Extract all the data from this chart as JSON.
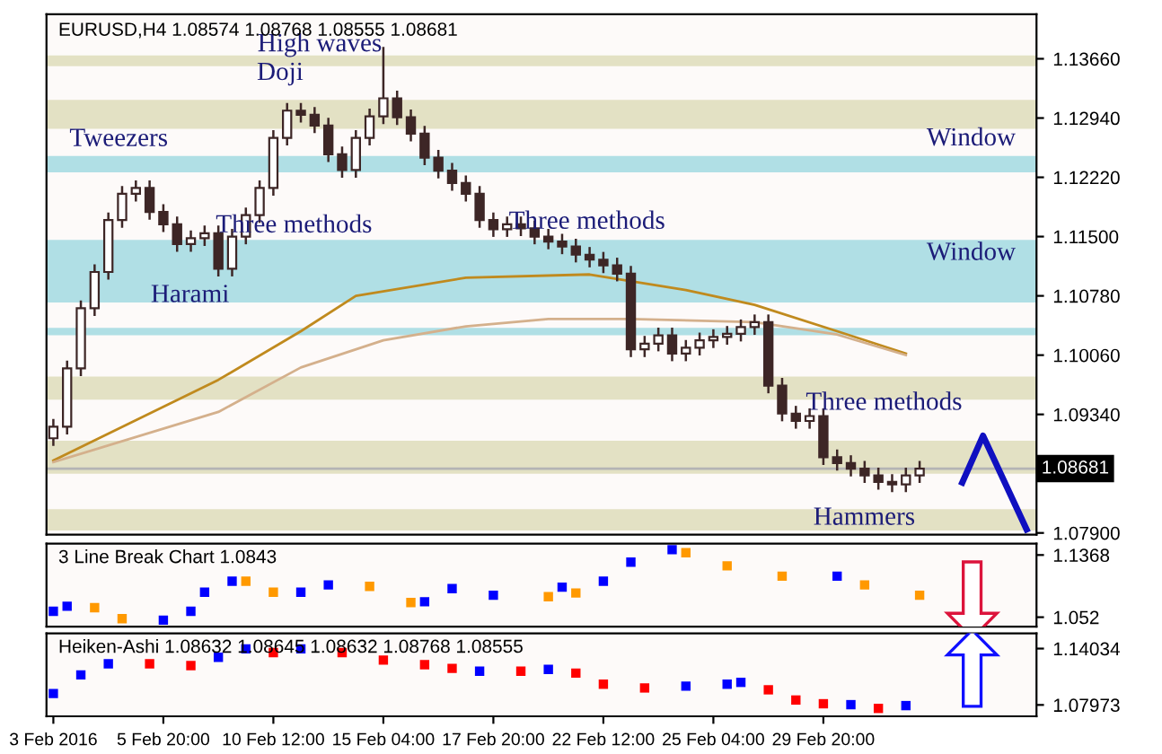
{
  "chart_data": [
    {
      "type": "candlestick",
      "title": "EURUSD,H4 1.08574 1.08768 1.08555 1.08681",
      "color": "#3d2626",
      "categories": [
        null,
        null,
        null,
        null,
        null,
        null,
        null,
        null,
        null,
        null,
        null,
        null,
        null,
        null,
        null,
        null,
        null,
        null,
        null,
        null,
        null,
        null,
        null,
        null,
        null,
        null,
        null,
        null,
        null,
        null,
        null,
        null,
        null,
        null,
        null,
        null,
        null,
        null,
        null,
        null,
        null,
        null,
        null,
        null,
        null,
        null,
        null,
        null,
        null,
        null,
        null,
        null,
        null,
        null,
        null,
        null,
        null,
        null,
        null,
        null,
        null,
        null,
        null,
        null,
        null,
        null,
        null,
        null,
        null,
        null,
        null,
        null
      ],
      "ohlc": [
        [
          1.0905,
          1.0927,
          1.0897,
          1.0919
        ],
        [
          1.0919,
          1.0998,
          1.0911,
          1.099
        ],
        [
          1.099,
          1.1071,
          1.0982,
          1.1063
        ],
        [
          1.1063,
          1.1115,
          1.1055,
          1.1107
        ],
        [
          1.1107,
          1.1178,
          1.1099,
          1.117
        ],
        [
          1.117,
          1.121,
          1.1162,
          1.1202
        ],
        [
          1.1202,
          1.1217,
          1.1194,
          1.1209
        ],
        [
          1.1209,
          1.1217,
          1.1172,
          1.118
        ],
        [
          1.118,
          1.1188,
          1.1157,
          1.1165
        ],
        [
          1.1165,
          1.1173,
          1.1133,
          1.1141
        ],
        [
          1.1141,
          1.1156,
          1.1133,
          1.1148
        ],
        [
          1.1148,
          1.1162,
          1.114,
          1.1154
        ],
        [
          1.1154,
          1.1162,
          1.1103,
          1.1111
        ],
        [
          1.1111,
          1.1158,
          1.1103,
          1.115
        ],
        [
          1.115,
          1.1184,
          1.1142,
          1.1176
        ],
        [
          1.1176,
          1.1217,
          1.1168,
          1.1209
        ],
        [
          1.1209,
          1.1278,
          1.1201,
          1.127
        ],
        [
          1.127,
          1.1311,
          1.1262,
          1.1303
        ],
        [
          1.1303,
          1.1311,
          1.129,
          1.1298
        ],
        [
          1.1298,
          1.1306,
          1.1277,
          1.1285
        ],
        [
          1.1285,
          1.1293,
          1.1242,
          1.125
        ],
        [
          1.125,
          1.1258,
          1.1223,
          1.1231
        ],
        [
          1.1231,
          1.1278,
          1.1223,
          1.127
        ],
        [
          1.127,
          1.1304,
          1.1262,
          1.1296
        ],
        [
          1.1296,
          1.1379,
          1.1288,
          1.1318
        ],
        [
          1.1318,
          1.1326,
          1.1287,
          1.1295
        ],
        [
          1.1295,
          1.1303,
          1.1267,
          1.1275
        ],
        [
          1.1275,
          1.1283,
          1.1238,
          1.1246
        ],
        [
          1.1246,
          1.1254,
          1.1222,
          1.123
        ],
        [
          1.123,
          1.1238,
          1.1207,
          1.1215
        ],
        [
          1.1215,
          1.1223,
          1.1194,
          1.1202
        ],
        [
          1.1202,
          1.121,
          1.1162,
          1.117
        ],
        [
          1.117,
          1.1178,
          1.1151,
          1.1159
        ],
        [
          1.1159,
          1.1173,
          1.1151,
          1.1165
        ],
        [
          1.1165,
          1.1173,
          1.1152,
          1.116
        ],
        [
          1.116,
          1.1168,
          1.1142,
          1.115
        ],
        [
          1.115,
          1.1158,
          1.1136,
          1.1144
        ],
        [
          1.1144,
          1.1152,
          1.113,
          1.1138
        ],
        [
          1.1138,
          1.1146,
          1.112,
          1.1128
        ],
        [
          1.1128,
          1.1136,
          1.1114,
          1.1122
        ],
        [
          1.1122,
          1.113,
          1.1107,
          1.1115
        ],
        [
          1.1115,
          1.1123,
          1.1097,
          1.1105
        ],
        [
          1.1105,
          1.1113,
          1.1005,
          1.1013
        ],
        [
          1.1013,
          1.1028,
          1.1005,
          1.102
        ],
        [
          1.102,
          1.1038,
          1.1012,
          1.103
        ],
        [
          1.103,
          1.1038,
          1.1,
          1.1008
        ],
        [
          1.1008,
          1.1023,
          1.1,
          1.1015
        ],
        [
          1.1015,
          1.1032,
          1.1007,
          1.1024
        ],
        [
          1.1024,
          1.1036,
          1.1016,
          1.1028
        ],
        [
          1.1028,
          1.104,
          1.102,
          1.1032
        ],
        [
          1.1032,
          1.1048,
          1.1024,
          1.104
        ],
        [
          1.104,
          1.1054,
          1.1032,
          1.1046
        ],
        [
          1.1046,
          1.1054,
          1.0961,
          1.0969
        ],
        [
          1.0969,
          1.0977,
          1.0927,
          1.0935
        ],
        [
          1.0935,
          1.0943,
          1.0918,
          1.0926
        ],
        [
          1.0926,
          1.094,
          1.0918,
          1.0932
        ],
        [
          1.0932,
          1.094,
          1.0874,
          1.0882
        ],
        [
          1.0882,
          1.089,
          1.0867,
          1.0875
        ],
        [
          1.0875,
          1.0883,
          1.086,
          1.0868
        ],
        [
          1.0868,
          1.0876,
          1.0852,
          1.086
        ],
        [
          1.086,
          1.0868,
          1.0844,
          1.0852
        ],
        [
          1.0852,
          1.086,
          1.0841,
          1.0849
        ],
        [
          1.0849,
          1.0868,
          1.0841,
          1.086
        ],
        [
          1.086,
          1.0876,
          1.0852,
          1.0868
        ],
        null,
        null,
        null,
        null,
        null,
        null,
        null,
        null
      ],
      "series": [
        {
          "type": "line",
          "color": "#c08a1e",
          "values": [
            1.0878,
            null,
            null,
            null,
            null,
            null,
            null,
            null,
            null,
            null,
            null,
            null,
            1.0976,
            null,
            null,
            null,
            null,
            null,
            1.1035,
            null,
            null,
            null,
            1.1078,
            null,
            null,
            null,
            null,
            null,
            null,
            null,
            1.11,
            null,
            null,
            null,
            null,
            null,
            null,
            null,
            null,
            1.1104,
            null,
            null,
            null,
            null,
            null,
            null,
            1.1085,
            null,
            null,
            null,
            null,
            1.1067,
            null,
            null,
            null,
            null,
            null,
            1.1035,
            null,
            null,
            null,
            null,
            1.1008,
            null,
            null,
            null,
            null,
            null,
            null,
            null,
            null,
            null
          ]
        },
        {
          "type": "line",
          "color": "#d4b08c",
          "values": [
            1.0876,
            null,
            null,
            null,
            null,
            null,
            null,
            null,
            null,
            null,
            null,
            null,
            1.0937,
            null,
            null,
            null,
            null,
            null,
            1.0991,
            null,
            null,
            null,
            null,
            null,
            1.1024,
            null,
            null,
            null,
            null,
            null,
            1.1041,
            null,
            null,
            null,
            null,
            null,
            1.105,
            null,
            null,
            null,
            null,
            null,
            1.105,
            null,
            null,
            null,
            null,
            null,
            null,
            null,
            null,
            1.1046,
            null,
            null,
            null,
            null,
            null,
            1.1031,
            null,
            null,
            null,
            null,
            1.1006,
            null,
            null,
            null,
            null,
            null,
            null,
            null,
            null,
            null
          ]
        }
      ],
      "ylim": [
        1.0788,
        1.142
      ],
      "yticks": [
        {
          "value": 1.1366,
          "label": "1.13660"
        },
        {
          "value": 1.1294,
          "label": "1.12940"
        },
        {
          "value": 1.1222,
          "label": "1.12220"
        },
        {
          "value": 1.115,
          "label": "1.11500"
        },
        {
          "value": 1.1078,
          "label": "1.10780"
        },
        {
          "value": 1.1006,
          "label": "1.10060"
        },
        {
          "value": 1.0934,
          "label": "1.09340"
        },
        {
          "value": 1.079,
          "label": "1.07900"
        }
      ],
      "bands": [
        {
          "axis": "y",
          "from": 1.1357,
          "to": 1.137,
          "color": "#e3e1c4"
        },
        {
          "axis": "y",
          "from": 1.1281,
          "to": 1.1316,
          "color": "#e3e1c4"
        },
        {
          "axis": "y",
          "from": 1.1228,
          "to": 1.1248,
          "color": "#b0dfe5"
        },
        {
          "axis": "y",
          "from": 1.107,
          "to": 1.1146,
          "color": "#b0dfe5"
        },
        {
          "axis": "y",
          "from": 1.103,
          "to": 1.1039,
          "color": "#b0dfe5"
        },
        {
          "axis": "y",
          "from": 1.0952,
          "to": 1.098,
          "color": "#e3e1c4"
        },
        {
          "axis": "y",
          "from": 1.0862,
          "to": 1.0902,
          "color": "#e3e1c4"
        },
        {
          "axis": "y",
          "from": 1.0793,
          "to": 1.0819,
          "color": "#e3e1c4"
        }
      ],
      "ref_lines": [
        {
          "axis": "y",
          "value": 1.08681,
          "label": "1.08681",
          "color": "#b4b4b4"
        }
      ],
      "annotations": [
        "Tweezers",
        "Harami",
        "Three methods",
        "Doji",
        "High waves",
        "Three methods",
        "Window",
        "Window",
        "Three methods",
        "Hammers"
      ],
      "tick_labels": "y",
      "grid": false
    },
    {
      "type": "scatter",
      "title": "3 Line Break Chart 1.0843",
      "marker": "square",
      "categories": [
        null,
        null,
        null,
        null,
        null,
        null,
        null,
        null,
        null,
        null,
        null,
        null,
        null,
        null,
        null,
        null,
        null,
        null,
        null,
        null,
        null,
        null,
        null,
        null,
        null,
        null,
        null,
        null,
        null,
        null,
        null,
        null,
        null,
        null,
        null,
        null,
        null,
        null,
        null,
        null,
        null,
        null,
        null,
        null,
        null,
        null,
        null,
        null,
        null,
        null,
        null,
        null,
        null,
        null,
        null,
        null,
        null,
        null,
        null,
        null,
        null,
        null,
        null,
        null,
        null,
        null,
        null,
        null,
        null,
        null,
        null,
        null
      ],
      "values": [
        1.06,
        1.067,
        null,
        1.065,
        null,
        1.05,
        null,
        null,
        1.048,
        null,
        1.06,
        1.086,
        null,
        1.101,
        1.101,
        null,
        1.086,
        null,
        1.086,
        null,
        1.096,
        null,
        null,
        1.094,
        null,
        null,
        1.072,
        1.073,
        null,
        1.091,
        null,
        null,
        1.082,
        null,
        null,
        null,
        1.08,
        1.093,
        1.085,
        null,
        1.101,
        null,
        1.127,
        null,
        null,
        1.144,
        1.14,
        null,
        null,
        1.122,
        null,
        null,
        null,
        1.108,
        null,
        null,
        null,
        1.108,
        null,
        1.096,
        null,
        null,
        null,
        1.082,
        null,
        null,
        null,
        null,
        null,
        null,
        null,
        null
      ],
      "colors": [
        "#0000ff",
        "#0000ff",
        null,
        "#ff9900",
        null,
        "#ff9900",
        null,
        null,
        "#0000ff",
        null,
        "#0000ff",
        "#0000ff",
        null,
        "#0000ff",
        "#ff9900",
        null,
        "#ff9900",
        null,
        "#0000ff",
        null,
        "#0000ff",
        null,
        null,
        "#ff9900",
        null,
        null,
        "#ff9900",
        "#0000ff",
        null,
        "#0000ff",
        null,
        null,
        "#0000ff",
        null,
        null,
        null,
        "#ff9900",
        "#0000ff",
        "#ff9900",
        null,
        "#0000ff",
        null,
        "#0000ff",
        null,
        null,
        "#0000ff",
        "#ff9900",
        null,
        null,
        "#ff9900",
        null,
        null,
        null,
        "#ff9900",
        null,
        null,
        null,
        "#0000ff",
        null,
        "#ff9900",
        null,
        null,
        null,
        "#ff9900",
        null,
        null,
        null,
        null,
        null,
        null,
        null,
        null
      ],
      "ylim": [
        1.0392,
        1.1523
      ],
      "yticks": [
        1.1368,
        1.052
      ],
      "tick_labels": "y",
      "grid": false
    },
    {
      "type": "scatter",
      "title": "Heiken-Ashi 1.08632 1.08645 1.08632 1.08768 1.08555",
      "marker": "square",
      "categories": [
        "3 Feb 2016",
        null,
        null,
        null,
        null,
        null,
        null,
        null,
        "5 Feb 20:00",
        null,
        null,
        null,
        null,
        null,
        null,
        null,
        "10 Feb 12:00",
        null,
        null,
        null,
        null,
        null,
        null,
        null,
        "15 Feb 04:00",
        null,
        null,
        null,
        null,
        null,
        null,
        null,
        "17 Feb 20:00",
        null,
        null,
        null,
        null,
        null,
        null,
        null,
        "22 Feb 12:00",
        null,
        null,
        null,
        null,
        null,
        null,
        null,
        "25 Feb 04:00",
        null,
        null,
        null,
        null,
        null,
        null,
        null,
        "29 Feb 20:00",
        null,
        null,
        null,
        null,
        null,
        null,
        null,
        null,
        null,
        null,
        null,
        null,
        null,
        null,
        null
      ],
      "values": [
        1.092,
        null,
        1.112,
        null,
        1.124,
        null,
        null,
        1.124,
        null,
        null,
        1.122,
        null,
        1.131,
        null,
        1.14,
        null,
        1.136,
        null,
        1.14,
        null,
        null,
        1.136,
        null,
        null,
        1.128,
        null,
        null,
        1.123,
        null,
        1.119,
        null,
        1.116,
        null,
        null,
        1.116,
        null,
        1.118,
        null,
        1.114,
        null,
        1.102,
        null,
        null,
        1.098,
        null,
        null,
        1.1,
        null,
        null,
        1.102,
        1.104,
        null,
        1.096,
        null,
        1.085,
        null,
        1.081,
        null,
        1.08,
        null,
        1.076,
        null,
        1.079,
        null,
        null,
        null,
        null,
        null,
        null,
        null,
        null,
        null
      ],
      "colors": [
        "#0000ff",
        null,
        "#0000ff",
        null,
        "#0000ff",
        null,
        null,
        "#ff0000",
        null,
        null,
        "#ff0000",
        null,
        "#0000ff",
        null,
        "#0000ff",
        null,
        "#ff0000",
        null,
        "#0000ff",
        null,
        null,
        "#ff0000",
        null,
        null,
        "#ff0000",
        null,
        null,
        "#ff0000",
        null,
        "#ff0000",
        null,
        "#0000ff",
        null,
        null,
        "#ff0000",
        null,
        "#0000ff",
        null,
        "#ff0000",
        null,
        "#ff0000",
        null,
        null,
        "#ff0000",
        null,
        null,
        "#0000ff",
        null,
        null,
        "#0000ff",
        "#0000ff",
        null,
        "#ff0000",
        null,
        "#ff0000",
        null,
        "#ff0000",
        null,
        "#0000ff",
        null,
        "#ff0000",
        null,
        "#0000ff",
        null,
        null,
        null,
        null,
        null,
        null,
        null,
        null,
        null
      ],
      "ylim": [
        1.0675,
        1.1567
      ],
      "yticks": [
        1.14034,
        1.07973
      ],
      "grid": false
    }
  ]
}
